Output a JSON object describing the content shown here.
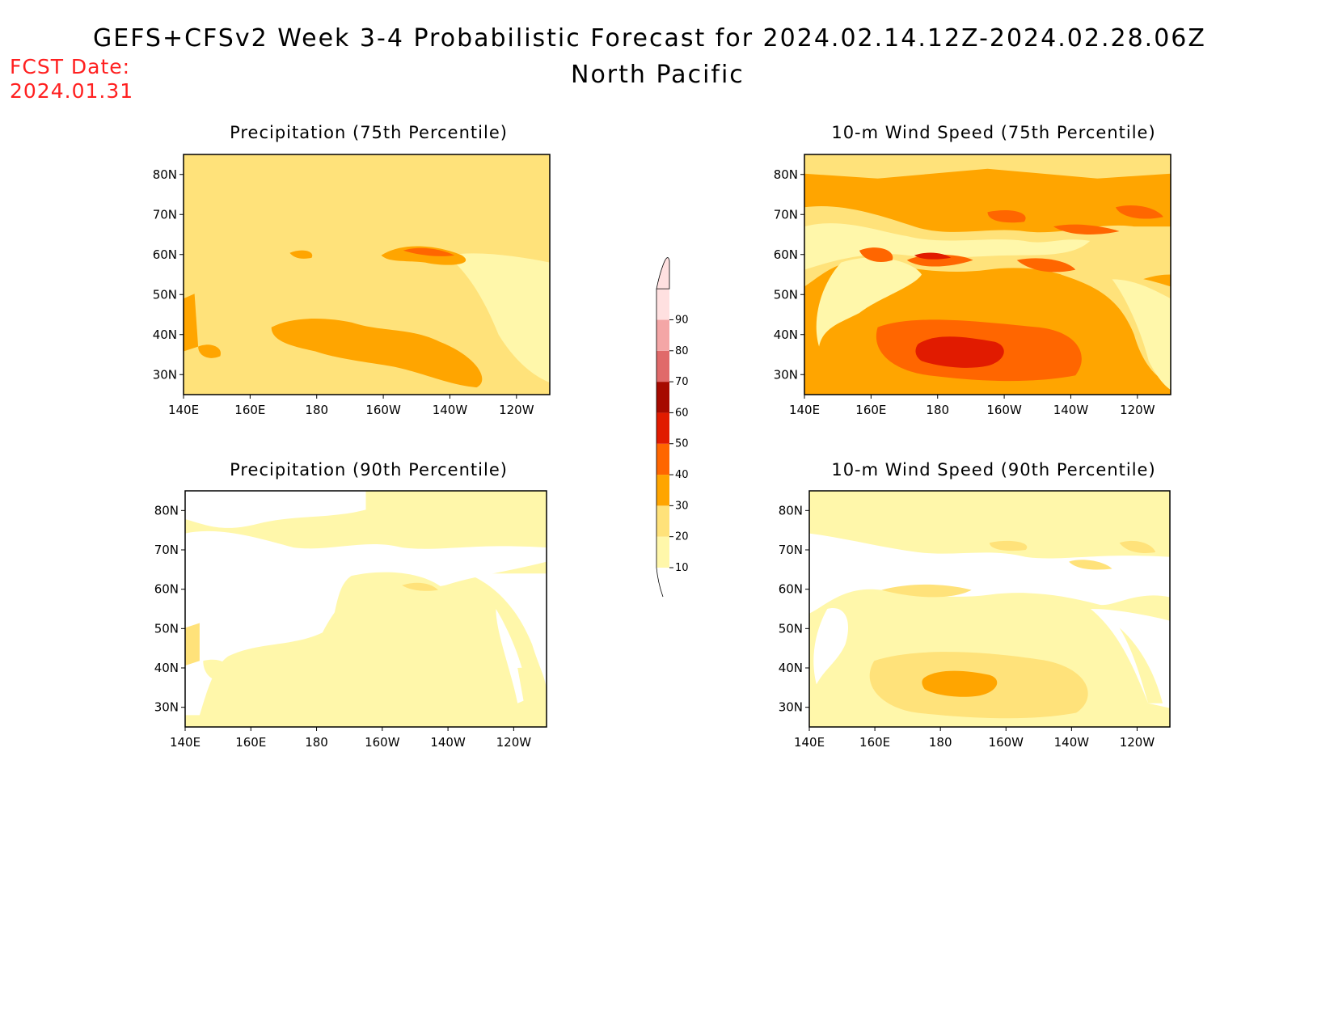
{
  "title": "GEFS+CFSv2 Week 3-4 Probabilistic Forecast for 2024.02.14.12Z-2024.02.28.06Z",
  "subtitle": "North Pacific",
  "fcst_label": "FCST Date:",
  "fcst_date": "2024.01.31",
  "colors": {
    "fcst_text": "#ff2020",
    "levels": [
      "#ffffff",
      "#fff7aa",
      "#ffe27a",
      "#ffa500",
      "#ff6600",
      "#e11b00",
      "#a60a00",
      "#e06a6a",
      "#f4a6a6",
      "#ffe0e0"
    ]
  },
  "colorbar": {
    "ticks": [
      "10",
      "20",
      "30",
      "40",
      "50",
      "60",
      "70",
      "80",
      "90"
    ]
  },
  "axes": {
    "lon_labels": [
      "140E",
      "160E",
      "180",
      "160W",
      "140W",
      "120W"
    ],
    "lat_labels": [
      "30N",
      "40N",
      "50N",
      "60N",
      "70N",
      "80N"
    ]
  },
  "panels": [
    {
      "id": "precip-75",
      "title": "Precipitation (75th Percentile)"
    },
    {
      "id": "wind-75",
      "title": "10-m Wind Speed (75th Percentile)"
    },
    {
      "id": "precip-90",
      "title": "Precipitation (90th Percentile)"
    },
    {
      "id": "wind-90",
      "title": "10-m Wind Speed (90th Percentile)"
    }
  ]
}
